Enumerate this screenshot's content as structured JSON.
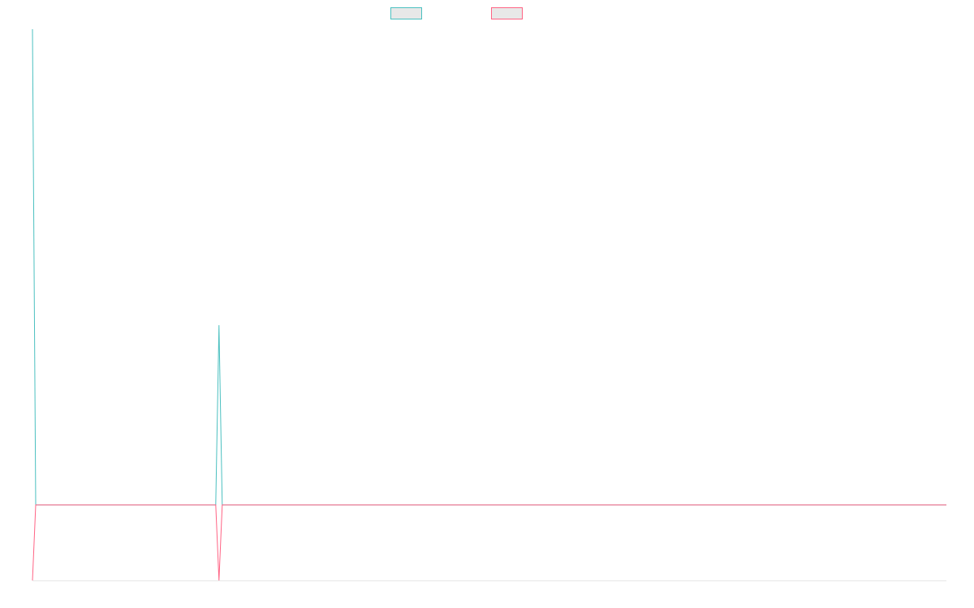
{
  "chart_data": {
    "type": "line",
    "title": "",
    "xlabel": "",
    "ylabel": "",
    "grid": false,
    "legend_position": "top-center",
    "x_points": 50,
    "ylim": [
      0,
      1
    ],
    "series": [
      {
        "name": "",
        "color": "#4bc0c0",
        "values": [
          1.0,
          0.137,
          0.137,
          0.137,
          0.137,
          0.137,
          0.137,
          0.137,
          0.137,
          0.137,
          0.137,
          0.137,
          0.137,
          0.137,
          0.137,
          0.137,
          0.137,
          0.137,
          0.137,
          0.137,
          0.137,
          0.137,
          0.137,
          0.137,
          0.137,
          0.137,
          0.137,
          0.137,
          0.137,
          0.137,
          0.137,
          0.137,
          0.137,
          0.137,
          0.137,
          0.137,
          0.137,
          0.137,
          0.137,
          0.137,
          0.137,
          0.137,
          0.137,
          0.137,
          0.137,
          0.137,
          0.137,
          0.137,
          0.137,
          0.137
        ]
      },
      {
        "name": "",
        "color": "#ff6384",
        "values": [
          0.0,
          0.137,
          0.137,
          0.137,
          0.137,
          0.137,
          0.137,
          0.137,
          0.137,
          0.137,
          0.137,
          0.137,
          0.137,
          0.137,
          0.137,
          0.137,
          0.137,
          0.137,
          0.137,
          0.137,
          0.137,
          0.137,
          0.137,
          0.137,
          0.137,
          0.137,
          0.137,
          0.137,
          0.137,
          0.137,
          0.137,
          0.137,
          0.137,
          0.137,
          0.137,
          0.137,
          0.137,
          0.137,
          0.137,
          0.137,
          0.137,
          0.137,
          0.137,
          0.137,
          0.137,
          0.137,
          0.137,
          0.137,
          0.137,
          0.137
        ]
      }
    ],
    "spikes": [
      {
        "series": 0,
        "index": 10,
        "value": 0.463
      },
      {
        "series": 1,
        "index": 10,
        "value": 0.0
      }
    ]
  }
}
